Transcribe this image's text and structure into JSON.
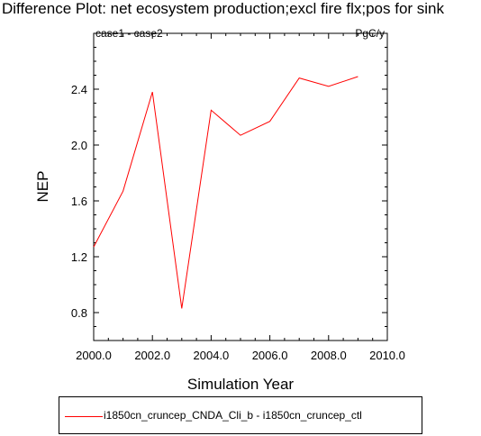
{
  "chart_data": {
    "type": "line",
    "title": "Difference Plot: net ecosystem production;excl fire flx;pos for sink",
    "subtitle_left": "case1 - case2",
    "subtitle_right": "PgC/y",
    "xlabel": "Simulation Year",
    "ylabel": "NEP",
    "xlim": [
      2000,
      2010
    ],
    "ylim": [
      0.6,
      2.8
    ],
    "xticks": [
      2000,
      2002,
      2004,
      2006,
      2008,
      2010
    ],
    "xtick_labels": [
      "2000.0",
      "2002.0",
      "2004.0",
      "2006.0",
      "2008.0",
      "2010.0"
    ],
    "yticks": [
      0.8,
      1.2,
      1.6,
      2.0,
      2.4
    ],
    "ytick_labels": [
      "0.8",
      "1.2",
      "1.6",
      "2.0",
      "2.4"
    ],
    "series": [
      {
        "name": "i1850cn_cruncep_CNDA_Cli_b - i1850cn_cruncep_ctl",
        "color": "#ff0000",
        "x": [
          2000,
          2001,
          2002,
          2003,
          2004,
          2005,
          2006,
          2007,
          2008,
          2009
        ],
        "y": [
          1.27,
          1.67,
          2.38,
          0.83,
          2.25,
          2.07,
          2.17,
          2.48,
          2.42,
          2.49
        ]
      }
    ],
    "legend_position": "bottom"
  }
}
